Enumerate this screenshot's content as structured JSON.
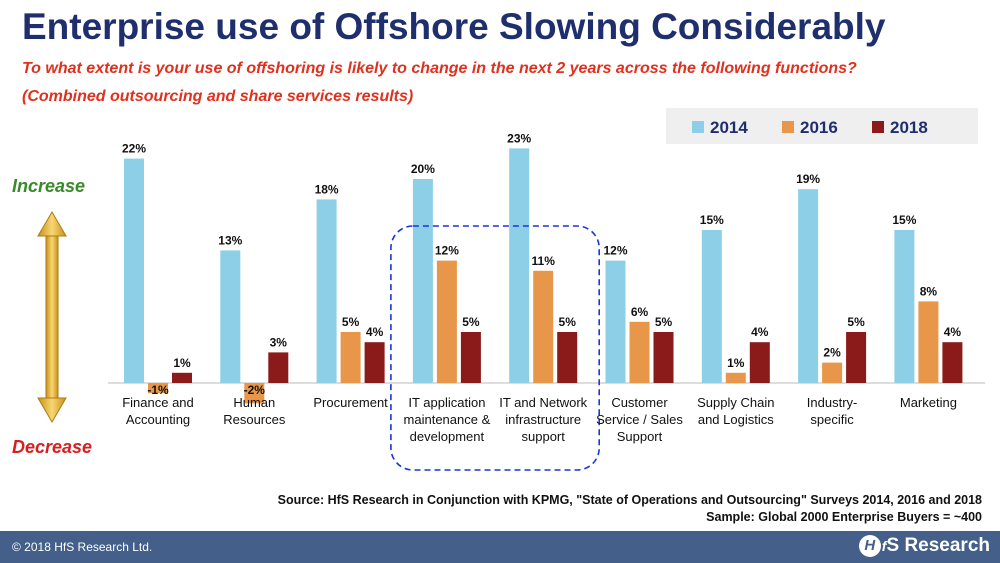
{
  "header": {
    "title": "Enterprise use of Offshore Slowing Considerably",
    "subtitle1": "To what extent is your use of offshoring is likely to change in the next 2 years across the following functions?",
    "subtitle2": "(Combined outsourcing and share services results)"
  },
  "side": {
    "increase": "Increase",
    "decrease": "Decrease"
  },
  "chart_data": {
    "type": "bar",
    "categories": [
      [
        "Finance and",
        "Accounting"
      ],
      [
        "Human",
        "Resources"
      ],
      [
        "Procurement"
      ],
      [
        "IT application",
        "maintenance &",
        "development"
      ],
      [
        "IT and Network",
        "infrastructure",
        "support"
      ],
      [
        "Customer",
        "Service / Sales",
        "Support"
      ],
      [
        "Supply Chain",
        "and Logistics"
      ],
      [
        "Industry-",
        "specific"
      ],
      [
        "Marketing"
      ]
    ],
    "series": [
      {
        "name": "2014",
        "color": "#8ecfe8",
        "values": [
          22,
          13,
          18,
          20,
          23,
          12,
          15,
          19,
          15
        ]
      },
      {
        "name": "2016",
        "color": "#e8974a",
        "values": [
          -1,
          -2,
          5,
          12,
          11,
          6,
          1,
          2,
          8
        ]
      },
      {
        "name": "2018",
        "color": "#8b1a1a",
        "values": [
          1,
          3,
          4,
          5,
          5,
          5,
          4,
          5,
          4
        ]
      }
    ],
    "value_suffix": "%",
    "legend_position": "top-right",
    "highlight_categories": [
      3,
      4
    ],
    "grid": false
  },
  "source": {
    "line1": "Source: HfS Research in Conjunction with KPMG, \"State of Operations and Outsourcing\" Surveys 2014, 2016 and 2018",
    "line2": "Sample: Global 2000 Enterprise Buyers = ~400"
  },
  "footer": {
    "copyright": "© 2018 HfS Research Ltd.",
    "logo_text": "Research",
    "logo_mark": "H",
    "logo_f": "f",
    "logo_s": "S"
  }
}
